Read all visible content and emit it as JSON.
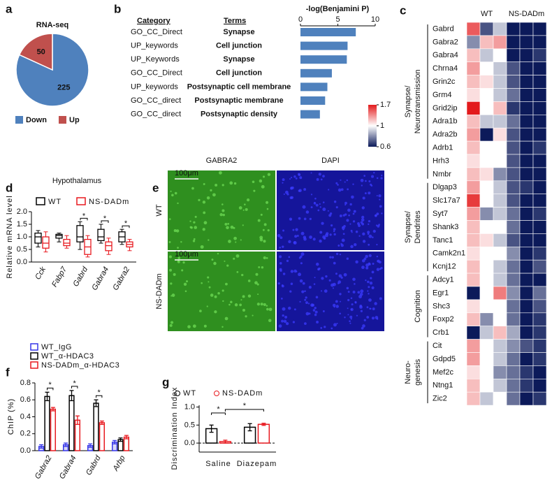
{
  "chart_data": [
    {
      "type": "pie",
      "panel": "a",
      "title": "RNA-seq",
      "categories": [
        "Down",
        "Up"
      ],
      "values": [
        225,
        50
      ],
      "colors": [
        "#4f81bd",
        "#c0504d"
      ]
    },
    {
      "type": "bar",
      "panel": "b",
      "orientation": "horizontal",
      "column_headers": [
        "Category",
        "Terms"
      ],
      "sources": [
        "GO_CC_Direct",
        "UP_keywords",
        "UP_Keywords",
        "GO_CC_Direct",
        "UP_keywords",
        "GO_CC_direct",
        "GO_CC_direct"
      ],
      "categories": [
        "Synapse",
        "Cell junction",
        "Synapse",
        "Cell junction",
        "Postsynaptic cell membrane",
        "Postsynaptic membrane",
        "Postsynaptic density"
      ],
      "values": [
        7.4,
        6.3,
        6.2,
        4.2,
        3.6,
        3.3,
        2.6
      ],
      "color": "#4f81bd",
      "xlabel": "-log(Benjamini P)",
      "xlim": [
        0,
        10
      ],
      "xticks": [
        0,
        5,
        10
      ]
    },
    {
      "type": "heatmap",
      "panel": "c",
      "column_groups": [
        "WT",
        "NS-DADm"
      ],
      "colormap": [
        {
          "value": 0.6,
          "color": "#0c1a5a"
        },
        {
          "value": 1,
          "color": "#ffffff"
        },
        {
          "value": 1.7,
          "color": "#e31a1c"
        }
      ],
      "colorbar_ticks": [
        1.7,
        1,
        0.6
      ],
      "groups": [
        {
          "label": [
            "Synapse/",
            "Neurotransmission"
          ],
          "genes": [
            "Gabrd",
            "Gabra2",
            "Gabra4",
            "Chrna4",
            "Grin2c",
            "Grm4",
            "Grid2ip",
            "Adra1b",
            "Adra2b",
            "Adrb1",
            "Hrh3",
            "Nmbr"
          ],
          "values": [
            [
              1.5,
              0.7,
              0.9,
              0.6,
              0.6,
              0.6
            ],
            [
              0.8,
              1.2,
              1.3,
              0.6,
              0.6,
              0.6
            ],
            [
              1.2,
              0.9,
              1.0,
              0.6,
              0.6,
              0.65
            ],
            [
              1.3,
              1.0,
              0.9,
              0.7,
              0.6,
              0.6
            ],
            [
              1.2,
              1.1,
              0.9,
              0.7,
              0.6,
              0.6
            ],
            [
              1.1,
              1.0,
              0.9,
              0.75,
              0.6,
              0.6
            ],
            [
              1.7,
              1.0,
              1.2,
              0.65,
              0.6,
              0.6
            ],
            [
              1.2,
              0.9,
              0.9,
              0.75,
              0.6,
              0.6
            ],
            [
              1.3,
              0.6,
              1.1,
              0.7,
              0.6,
              0.6
            ],
            [
              1.2,
              1.0,
              1.0,
              0.7,
              0.6,
              0.65
            ],
            [
              1.1,
              1.0,
              1.0,
              0.7,
              0.6,
              0.6
            ],
            [
              1.2,
              1.1,
              0.8,
              0.7,
              0.6,
              0.6
            ]
          ]
        },
        {
          "label": [
            "Synapse/",
            "Dendrites"
          ],
          "genes": [
            "Dlgap3",
            "Slc17a7",
            "Syt7",
            "Shank3",
            "Tanc1",
            "Camk2n1",
            "Kcnj12"
          ],
          "values": [
            [
              1.3,
              1.0,
              0.9,
              0.7,
              0.65,
              0.6
            ],
            [
              1.6,
              1.0,
              0.9,
              0.7,
              0.6,
              0.6
            ],
            [
              1.3,
              0.8,
              0.9,
              0.75,
              0.6,
              0.65
            ],
            [
              1.2,
              1.0,
              1.0,
              0.75,
              0.6,
              0.6
            ],
            [
              1.2,
              1.1,
              0.9,
              0.7,
              0.6,
              0.6
            ],
            [
              1.1,
              1.0,
              1.0,
              0.8,
              0.6,
              0.65
            ],
            [
              1.2,
              1.0,
              0.9,
              0.75,
              0.6,
              0.7
            ]
          ]
        },
        {
          "label": [
            "Cognition"
          ],
          "genes": [
            "Adcy1",
            "Egr1",
            "Shc3",
            "Foxp2",
            "Crb1"
          ],
          "values": [
            [
              1.2,
              1.0,
              0.9,
              0.75,
              0.6,
              0.6
            ],
            [
              0.6,
              1.0,
              1.4,
              0.8,
              0.6,
              0.75
            ],
            [
              1.1,
              1.0,
              1.0,
              0.75,
              0.6,
              0.7
            ],
            [
              1.2,
              0.8,
              1.0,
              0.75,
              0.6,
              0.65
            ],
            [
              0.6,
              0.9,
              1.2,
              0.85,
              0.6,
              0.65
            ]
          ]
        },
        {
          "label": [
            "Neuro-",
            "genesis"
          ],
          "genes": [
            "Cit",
            "Gdpd5",
            "Mef2c",
            "Ntng1",
            "Zic2"
          ],
          "values": [
            [
              1.3,
              1.0,
              0.9,
              0.8,
              0.7,
              0.65
            ],
            [
              1.3,
              1.0,
              0.9,
              0.75,
              0.6,
              0.65
            ],
            [
              1.1,
              1.0,
              0.8,
              0.75,
              0.65,
              0.6
            ],
            [
              1.2,
              1.0,
              0.9,
              0.75,
              0.65,
              0.6
            ],
            [
              1.2,
              0.9,
              1.0,
              0.75,
              0.6,
              0.65
            ]
          ]
        }
      ]
    },
    {
      "type": "box",
      "panel": "d",
      "title": "Hypothalamus",
      "ylabel": "Relative mRNA level",
      "categories": [
        "Cck",
        "Fabp7",
        "Gabrd",
        "Gabra4",
        "Gabra2"
      ],
      "series": [
        {
          "name": "WT",
          "color": "#000000",
          "boxes": [
            {
              "min": 0.6,
              "q1": 0.75,
              "median": 1.0,
              "q3": 1.15,
              "max": 1.25
            },
            {
              "min": 0.8,
              "q1": 0.95,
              "median": 1.05,
              "q3": 1.1,
              "max": 1.15
            },
            {
              "min": 0.5,
              "q1": 0.8,
              "median": 1.0,
              "q3": 1.45,
              "max": 1.6
            },
            {
              "min": 0.75,
              "q1": 0.85,
              "median": 1.0,
              "q3": 1.3,
              "max": 1.5
            },
            {
              "min": 0.7,
              "q1": 0.8,
              "median": 1.0,
              "q3": 1.2,
              "max": 1.3
            }
          ]
        },
        {
          "name": "NS-DADm",
          "color": "#e8191f",
          "boxes": [
            {
              "min": 0.4,
              "q1": 0.55,
              "median": 0.75,
              "q3": 1.0,
              "max": 1.2
            },
            {
              "min": 0.55,
              "q1": 0.65,
              "median": 0.75,
              "q3": 0.9,
              "max": 1.05
            },
            {
              "min": 0.2,
              "q1": 0.3,
              "median": 0.6,
              "q3": 0.9,
              "max": 1.05
            },
            {
              "min": 0.3,
              "q1": 0.45,
              "median": 0.65,
              "q3": 0.8,
              "max": 0.95
            },
            {
              "min": 0.45,
              "q1": 0.6,
              "median": 0.7,
              "q3": 0.8,
              "max": 0.9
            }
          ]
        }
      ],
      "ylim": [
        0,
        2
      ],
      "yticks": [
        {
          "value": 0,
          "label": "0.0"
        },
        0.5,
        {
          "value": 1,
          "label": "1.0"
        },
        1.5,
        {
          "value": 2,
          "label": "2.0"
        }
      ],
      "significance": [
        null,
        null,
        "*",
        "*",
        "*"
      ]
    },
    {
      "type": "bar",
      "panel": "f",
      "orientation": "vertical",
      "bar_style": "outline",
      "ylabel": "ChIP (%)",
      "categories": [
        "Gabra2",
        "Gabra4",
        "Gabrd",
        "Arbp"
      ],
      "series": [
        {
          "name": "WT_IgG",
          "color": "#3535e8",
          "values": [
            0.05,
            0.07,
            0.06,
            0.1
          ],
          "errors": [
            0.02,
            0.02,
            0.02,
            0.02
          ]
        },
        {
          "name": "WT_α-HDAC3",
          "color": "#000000",
          "values": [
            0.64,
            0.65,
            0.56,
            0.13
          ],
          "errors": [
            0.05,
            0.06,
            0.04,
            0.02
          ]
        },
        {
          "name": "NS-DADm_α-HDAC3",
          "color": "#e8191f",
          "values": [
            0.49,
            0.36,
            0.33,
            0.16
          ],
          "errors": [
            0.02,
            0.05,
            0.02,
            0.02
          ]
        }
      ],
      "ylim": [
        0,
        0.8
      ],
      "yticks": [
        {
          "value": 0,
          "label": "0.0"
        },
        0.2,
        0.4,
        0.6,
        0.8
      ],
      "significance": [
        "*",
        "*",
        "*",
        null
      ]
    },
    {
      "type": "bar",
      "panel": "g",
      "orientation": "vertical",
      "bar_style": "outline",
      "ylabel": "Discrimination Index",
      "categories": [
        "Saline",
        "Diazepam"
      ],
      "series": [
        {
          "name": "WT",
          "color": "#000000",
          "values": [
            0.4,
            0.44
          ],
          "errors": [
            0.1,
            0.1
          ]
        },
        {
          "name": "NS-DADm",
          "color": "#e8191f",
          "values": [
            0.04,
            0.52
          ],
          "errors": [
            0.04,
            0.03
          ]
        }
      ],
      "ylim": [
        -0.25,
        1.05
      ],
      "yticks": [
        {
          "value": 0,
          "label": "0.0"
        },
        0.5,
        {
          "value": 1,
          "label": "1.0"
        }
      ],
      "zero_line": "dashed",
      "comparison_labels": [
        "*",
        "*"
      ]
    }
  ],
  "image_panel": {
    "panel": "e",
    "columns": [
      "GABRA2",
      "DAPI"
    ],
    "rows": [
      "WT",
      "NS-DADm"
    ],
    "scale_bars": [
      "100μm",
      "100μm"
    ],
    "channel_colors": [
      "#2f8f1f",
      "#15159a"
    ]
  }
}
